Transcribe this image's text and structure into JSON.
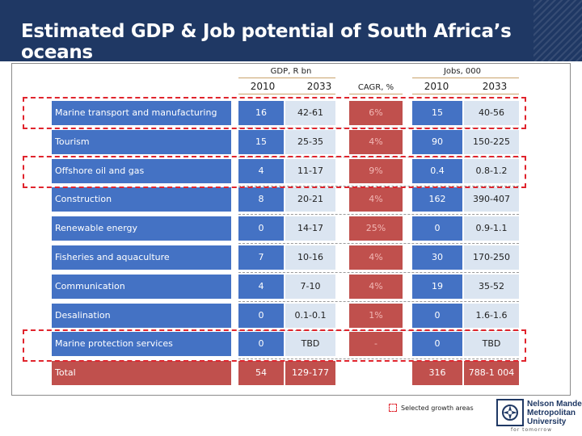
{
  "slide": {
    "title": "Estimated GDP & Job potential of South Africa’s oceans"
  },
  "table": {
    "gdp_group": "GDP, R bn",
    "jobs_group": "Jobs, 000",
    "col_2010": "2010",
    "col_2033": "2033",
    "col_cagr": "CAGR, %",
    "rows": [
      {
        "label": "Marine transport and manufacturing",
        "gdp2010": "16",
        "gdp2033": "42-61",
        "cagr": "6%",
        "jobs2010": "15",
        "jobs2033": "40-56"
      },
      {
        "label": "Tourism",
        "gdp2010": "15",
        "gdp2033": "25-35",
        "cagr": "4%",
        "jobs2010": "90",
        "jobs2033": "150-225"
      },
      {
        "label": "Offshore oil and gas",
        "gdp2010": "4",
        "gdp2033": "11-17",
        "cagr": "9%",
        "jobs2010": "0.4",
        "jobs2033": "0.8-1.2"
      },
      {
        "label": "Construction",
        "gdp2010": "8",
        "gdp2033": "20-21",
        "cagr": "4%",
        "jobs2010": "162",
        "jobs2033": "390-407"
      },
      {
        "label": "Renewable energy",
        "gdp2010": "0",
        "gdp2033": "14-17",
        "cagr": "25%",
        "jobs2010": "0",
        "jobs2033": "0.9-1.1"
      },
      {
        "label": "Fisheries and aquaculture",
        "gdp2010": "7",
        "gdp2033": "10-16",
        "cagr": "4%",
        "jobs2010": "30",
        "jobs2033": "170-250"
      },
      {
        "label": "Communication",
        "gdp2010": "4",
        "gdp2033": "7-10",
        "cagr": "4%",
        "jobs2010": "19",
        "jobs2033": "35-52"
      },
      {
        "label": "Desalination",
        "gdp2010": "0",
        "gdp2033": "0.1-0.1",
        "cagr": "1%",
        "jobs2010": "0",
        "jobs2033": "1.6-1.6"
      },
      {
        "label": "Marine protection services",
        "gdp2010": "0",
        "gdp2033": "TBD",
        "cagr": "-",
        "jobs2010": "0",
        "jobs2033": "TBD"
      }
    ],
    "total": {
      "label": "Total",
      "gdp2010": "54",
      "gdp2033": "129-177",
      "jobs2010": "316",
      "jobs2033": "788-1 004"
    }
  },
  "legend": {
    "text": "Selected growth areas"
  },
  "logo": {
    "line1": "Nelson Mandela",
    "line2": "Metropolitan",
    "line3": "University",
    "tagline": "for tomorrow"
  },
  "colors": {
    "header": "#1f3864",
    "row_blue": "#4472c4",
    "total_red": "#c0504d",
    "highlight_dash": "#e0242d"
  }
}
